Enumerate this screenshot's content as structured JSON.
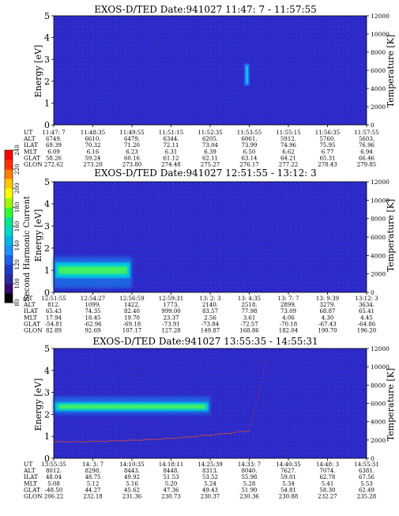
{
  "colorbar": {
    "label": "Second Harmonic Current",
    "ticks": [
      "80",
      "100",
      "120",
      "140",
      "160",
      "180",
      "200",
      "220",
      "240"
    ],
    "colors": [
      "#000000",
      "#3a0a6e",
      "#2a2aa0",
      "#1f3cc8",
      "#1e60e6",
      "#1e90ff",
      "#00b4e6",
      "#00d8c8",
      "#00e890",
      "#30ff30",
      "#a0ff00",
      "#ffff00",
      "#ffc800",
      "#ff8000",
      "#ff3000",
      "#ff0000"
    ]
  },
  "chart_data": [
    {
      "type": "heatmap",
      "title": "EXOS-D/TED   Date:941027   11:47: 7 - 11:57:55",
      "ylabel": "Energy [eV]",
      "y2label": "Temperature [K]",
      "ylim": [
        0,
        5
      ],
      "y2lim": [
        0,
        12000
      ],
      "yticks": [
        "0",
        "1",
        "2",
        "3",
        "4",
        "5"
      ],
      "y2ticks": [
        "0",
        "2000",
        "4000",
        "6000",
        "8000",
        "10000",
        "12000"
      ],
      "background_level": "low (blue)",
      "features": [
        {
          "description": "narrow vertical streak",
          "x": "11:53:55",
          "energy_range": [
            1.8,
            2.8
          ],
          "color": "cyan"
        }
      ],
      "table": {
        "row_labels": [
          "UT",
          "ALT",
          "ILAT",
          "MLT",
          "GLAT",
          "GLON"
        ],
        "columns": [
          [
            "11:47: 7",
            "6749.",
            "69.39",
            "6.09",
            "58.26",
            "272.62"
          ],
          [
            "11:48:35",
            "6610.",
            "70.32",
            "6.16",
            "59.24",
            "273.20"
          ],
          [
            "11:49:55",
            "6479.",
            "71.20",
            "6.23",
            "60.16",
            "273.80"
          ],
          [
            "11:51:15",
            "6344.",
            "72.11",
            "6.31",
            "61.12",
            "274.48"
          ],
          [
            "11:52:35",
            "6205.",
            "73.04",
            "6.39",
            "62.11",
            "275.27"
          ],
          [
            "11:53:55",
            "6061.",
            "73.99",
            "6.50",
            "63.14",
            "276.17"
          ],
          [
            "11:55:15",
            "5912.",
            "74.96",
            "6.62",
            "64.21",
            "277.22"
          ],
          [
            "11:56:35",
            "5760.",
            "75.95",
            "6.77",
            "65.31",
            "278.43"
          ],
          [
            "11:57:55",
            "5603.",
            "76.96",
            "6.94",
            "66.46",
            "279.85"
          ]
        ]
      }
    },
    {
      "type": "heatmap",
      "title": "EXOS-D/TED   Date:941027   12:51:55 - 13:12: 3",
      "ylabel": "Energy [eV]",
      "y2label": "Temperature [K]",
      "ylim": [
        0,
        5
      ],
      "y2lim": [
        0,
        12000
      ],
      "yticks": [
        "0",
        "1",
        "2",
        "3",
        "4",
        "5"
      ],
      "y2ticks": [
        "0",
        "2000",
        "4000",
        "6000",
        "8000",
        "10000",
        "12000"
      ],
      "background_level": "low (blue)",
      "features": [
        {
          "description": "enhanced band",
          "x_range": [
            "12:51:55",
            "12:56:59"
          ],
          "energy_range": [
            0.2,
            1.6
          ],
          "peak_energy": 1.0,
          "color": "cyan-green"
        }
      ],
      "table": {
        "row_labels": [
          "UT",
          "ALT",
          "ILAT",
          "MLT",
          "GLAT",
          "GLON"
        ],
        "columns": [
          [
            "12:51:55",
            "812.",
            "65.43",
            "17.94",
            "-54.81",
            "82.89"
          ],
          [
            "12:54:27",
            "1099.",
            "74.35",
            "18.45",
            "-62.96",
            "92.69"
          ],
          [
            "12:56:59",
            "1422.",
            "82.40",
            "19.70",
            "-69.18",
            "107.17"
          ],
          [
            "12:59:31",
            "1773.",
            "999.00",
            "23.37",
            "-73.91",
            "127.28"
          ],
          [
            "13: 2: 3",
            "2140.",
            "83.57",
            "2.56",
            "-73.84",
            "149.87"
          ],
          [
            "13: 4:35",
            "2518.",
            "77.98",
            "3.61",
            "-72.57",
            "168.86"
          ],
          [
            "13: 7: 7",
            "2899.",
            "73.09",
            "4.06",
            "-70.18",
            "182.04"
          ],
          [
            "13: 9:39",
            "3279.",
            "68.87",
            "4.30",
            "-67.43",
            "190.70"
          ],
          [
            "13:12: 3",
            "3634.",
            "65.41",
            "4.45",
            "-64.86",
            "196.20"
          ]
        ]
      }
    },
    {
      "type": "heatmap",
      "title": "EXOS-D/TED   Date:941027   13:55:35 - 14:55:31",
      "ylabel": "Energy [eV]",
      "y2label": "Temperature [K]",
      "ylim": [
        0,
        5
      ],
      "y2lim": [
        0,
        12000
      ],
      "yticks": [
        "0",
        "1",
        "2",
        "3",
        "4",
        "5"
      ],
      "y2ticks": [
        "0",
        "2000",
        "4000",
        "6000",
        "8000",
        "10000",
        "12000"
      ],
      "background_level": "low (blue)",
      "features": [
        {
          "description": "enhanced band",
          "x_range": [
            "13:55:35",
            "14:25:39"
          ],
          "energy_range": [
            2.0,
            2.8
          ],
          "peak_energy": 2.35,
          "color": "green-cyan"
        },
        {
          "description": "temperature trace",
          "x_range": [
            "13:55:35",
            "14:33: 7"
          ],
          "temperature_range": [
            1800,
            3000
          ],
          "color": "red"
        }
      ],
      "table": {
        "row_labels": [
          "UT",
          "ALT",
          "ILAT",
          "MLT",
          "GLAT",
          "GLON"
        ],
        "columns": [
          [
            "13:55:35",
            "8012.",
            "48.04",
            "5.08",
            "-48.50",
            "206.22"
          ],
          [
            "14: 3: 7",
            "8298.",
            "48.75",
            "5.12",
            "44.27",
            "232.18"
          ],
          [
            "14:10:35",
            "8443.",
            "49.92",
            "5.16",
            "45.62",
            "231.36"
          ],
          [
            "14:18:11",
            "8448.",
            "51.53",
            "5.20",
            "47.36",
            "230.73"
          ],
          [
            "14:25:39",
            "8313.",
            "53.52",
            "5.24",
            "49.43",
            "230.37"
          ],
          [
            "14:33: 7",
            "8040.",
            "55.98",
            "5.28",
            "51.90",
            "230.36"
          ],
          [
            "14:40:35",
            "7627.",
            "59.01",
            "5.34",
            "54.81",
            "230.88"
          ],
          [
            "14:48: 3",
            "7074.",
            "62.78",
            "5.41",
            "58.30",
            "232.27"
          ],
          [
            "14:55:31",
            "6381.",
            "67.56",
            "5.53",
            "62.49",
            "235.28"
          ]
        ]
      }
    }
  ]
}
